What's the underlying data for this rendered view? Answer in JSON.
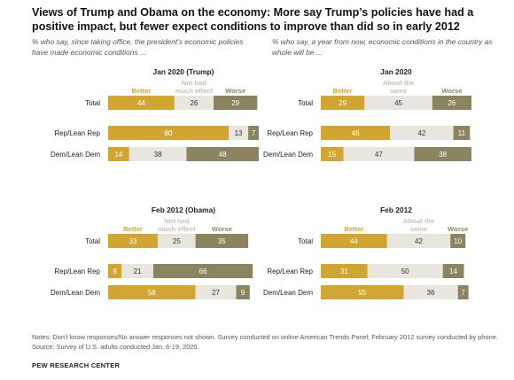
{
  "title": "Views of Trump and Obama on the economy: More say Trump’s policies have had a positive impact, but fewer expect conditions to improve than did so in early 2012",
  "subtitles": {
    "left": "% who say, since taking office, the president’s economic policies have made economic conditions ...",
    "right": "% who say, a year from now, economic conditions in the country as whole will be ..."
  },
  "notes": "Notes: Don’t know responses/No answer responses not shown. Survey conducted on online American Trends Panel; February 2012 survey conducted by phone.",
  "source": "Source: Survey of U.S. adults conducted Jan. 6-19, 2020.",
  "org": "PEW RESEARCH CENTER",
  "colors": {
    "better": "#d1a531",
    "neutral": "#e9e6df",
    "worse": "#8c8460",
    "neutral_text": "#c8c2b4"
  },
  "chart_data": [
    {
      "type": "bar",
      "stacked": true,
      "orientation": "horizontal",
      "title": "Jan 2020 (Trump)",
      "legend": [
        "Better",
        "Not had much effect",
        "Worse"
      ],
      "categories": [
        "Total",
        "Rep/Lean Rep",
        "Dem/Lean Dem"
      ],
      "series": [
        {
          "name": "Better",
          "values": [
            44,
            80,
            14
          ]
        },
        {
          "name": "Not had much effect",
          "values": [
            26,
            13,
            38
          ]
        },
        {
          "name": "Worse",
          "values": [
            29,
            7,
            48
          ]
        }
      ]
    },
    {
      "type": "bar",
      "stacked": true,
      "orientation": "horizontal",
      "title": "Jan 2020",
      "legend": [
        "Better",
        "About the same",
        "Worse"
      ],
      "categories": [
        "Total",
        "Rep/Lean Rep",
        "Dem/Lean Dem"
      ],
      "series": [
        {
          "name": "Better",
          "values": [
            29,
            46,
            15
          ]
        },
        {
          "name": "About the same",
          "values": [
            45,
            42,
            47
          ]
        },
        {
          "name": "Worse",
          "values": [
            26,
            11,
            38
          ]
        }
      ]
    },
    {
      "type": "bar",
      "stacked": true,
      "orientation": "horizontal",
      "title": "Feb 2012 (Obama)",
      "legend": [
        "Better",
        "Not had much effect",
        "Worse"
      ],
      "categories": [
        "Total",
        "Rep/Lean Rep",
        "Dem/Lean Dem"
      ],
      "series": [
        {
          "name": "Better",
          "values": [
            33,
            9,
            58
          ]
        },
        {
          "name": "Not had much effect",
          "values": [
            25,
            21,
            27
          ]
        },
        {
          "name": "Worse",
          "values": [
            35,
            66,
            9
          ]
        }
      ]
    },
    {
      "type": "bar",
      "stacked": true,
      "orientation": "horizontal",
      "title": "Feb 2012",
      "legend": [
        "Better",
        "About the same",
        "Worse"
      ],
      "categories": [
        "Total",
        "Rep/Lean Rep",
        "Dem/Lean Dem"
      ],
      "series": [
        {
          "name": "Better",
          "values": [
            44,
            31,
            55
          ]
        },
        {
          "name": "About the same",
          "values": [
            42,
            50,
            36
          ]
        },
        {
          "name": "Worse",
          "values": [
            10,
            14,
            7
          ]
        }
      ]
    }
  ]
}
